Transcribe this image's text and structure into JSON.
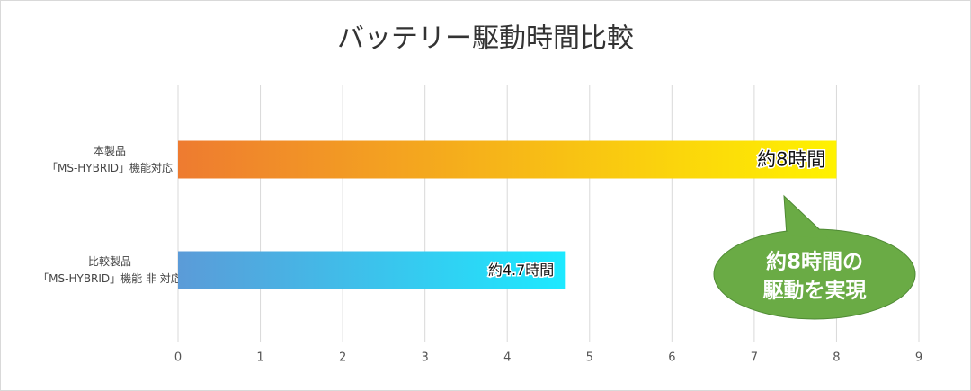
{
  "chart_data": {
    "type": "hbar",
    "title": "バッテリー駆動時間比較",
    "categories": [
      [
        "本製品",
        "「MS-HYBRID」機能対応"
      ],
      [
        "比較製品",
        "「MS-HYBRID」機能 非 対応"
      ]
    ],
    "series": [
      {
        "values": [
          8,
          4.7
        ],
        "value_labels": [
          "約8時間",
          "約4.7時間"
        ],
        "colors": [
          [
            "#ee7b30",
            "#fff200"
          ],
          [
            "#5b9bd8",
            "#1de9ff"
          ]
        ]
      }
    ],
    "xlim": [
      0,
      9
    ],
    "xticks": [
      0,
      1,
      2,
      3,
      4,
      5,
      6,
      7,
      8,
      9
    ],
    "grid": true,
    "annotation": {
      "lines": [
        "約8時間の",
        "駆動を実現"
      ],
      "color": "#6aab45"
    }
  }
}
